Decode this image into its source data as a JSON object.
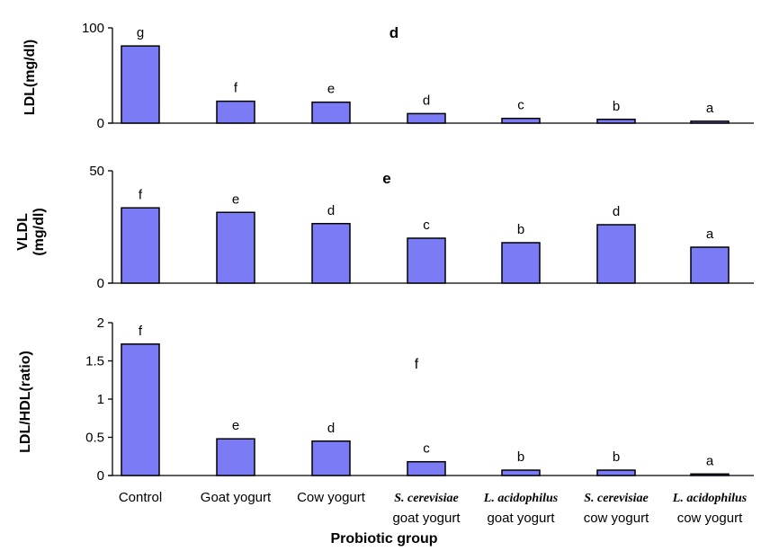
{
  "chart_data": [
    {
      "type": "bar",
      "panel_label": "d",
      "ylabel": "LDL(mg/dl)",
      "ylim": [
        0,
        100
      ],
      "yticks": [
        "100",
        "0"
      ],
      "categories": [
        "Control",
        "Goat yogurt",
        "Cow yogurt",
        "S. cerevisiae goat yogurt",
        "L. acidophilus goat yogurt",
        "S. cerevisiae cow yogurt",
        "L. acidophilus cow yogurt"
      ],
      "values": [
        81,
        23,
        22,
        10,
        5,
        4,
        2
      ],
      "significance": [
        "g",
        "f",
        "e",
        "d",
        "c",
        "b",
        "a"
      ]
    },
    {
      "type": "bar",
      "panel_label": "e",
      "ylabel": "VLDL (mg/dl)",
      "ylim": [
        0,
        50
      ],
      "yticks": [
        "50",
        "0"
      ],
      "categories": [
        "Control",
        "Goat yogurt",
        "Cow yogurt",
        "S. cerevisiae goat yogurt",
        "L. acidophilus goat yogurt",
        "S. cerevisiae cow yogurt",
        "L. acidophilus cow yogurt"
      ],
      "values": [
        33.5,
        31.5,
        26.5,
        20,
        18,
        26,
        16
      ],
      "significance": [
        "f",
        "e",
        "d",
        "c",
        "b",
        "d",
        "a"
      ]
    },
    {
      "type": "bar",
      "panel_label": "f",
      "ylabel": "LDL/HDL(ratio)",
      "ylim": [
        0,
        2
      ],
      "yticks": [
        "2",
        "1.5",
        "1",
        "0.5",
        "0"
      ],
      "categories": [
        "Control",
        "Goat yogurt",
        "Cow yogurt",
        "S. cerevisiae goat yogurt",
        "L. acidophilus goat yogurt",
        "S. cerevisiae cow yogurt",
        "L. acidophilus cow yogurt"
      ],
      "values": [
        1.72,
        0.48,
        0.45,
        0.18,
        0.07,
        0.07,
        0.02
      ],
      "significance": [
        "f",
        "e",
        "d",
        "c",
        "b",
        "b",
        "a"
      ]
    }
  ],
  "x_axis": {
    "title": "Probiotic group",
    "labels": [
      {
        "line1": "Control",
        "line2": "",
        "italic": false
      },
      {
        "line1": "Goat yogurt",
        "line2": "",
        "italic": false
      },
      {
        "line1": "Cow yogurt",
        "line2": "",
        "italic": false
      },
      {
        "line1": "S. cerevisiae",
        "line2": "goat yogurt",
        "italic": true
      },
      {
        "line1": "L. acidophilus",
        "line2": "goat yogurt",
        "italic": true
      },
      {
        "line1": "S. cerevisiae",
        "line2": "cow yogurt",
        "italic": true
      },
      {
        "line1": "L. acidophilus",
        "line2": "cow yogurt",
        "italic": true
      }
    ]
  },
  "colors": {
    "bar_fill": "#7b7bf5",
    "bar_stroke": "#000000"
  }
}
